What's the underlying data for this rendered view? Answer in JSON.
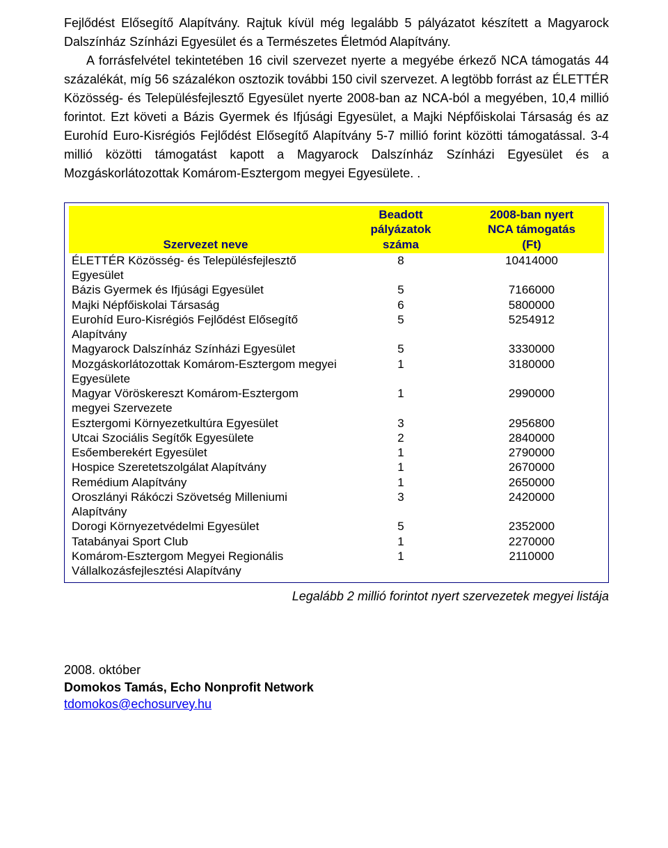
{
  "colors": {
    "header_bg": "#ffff00",
    "header_text": "#000080",
    "border": "#000080",
    "link": "#0000ee",
    "text": "#000000",
    "page_bg": "#ffffff"
  },
  "paragraph": "Fejlődést Elősegítő Alapítvány. Rajtuk kívül még legalább 5 pályázatot készített a Magyarock Dalszínház Színházi Egyesület és a Természetes Életmód Alapítvány.\n    A forrásfelvétel tekintetében 16 civil szervezet nyerte a megyébe érkező NCA támogatás 44 százalékát, míg 56 százalékon osztozik további 150 civil szervezet. A legtöbb forrást az ÉLETTÉR Közösség- és Településfejlesztő Egyesület nyerte 2008-ban az NCA-ból a megyében, 10,4 millió forintot. Ezt követi a Bázis Gyermek és Ifjúsági Egyesület, a Majki Népfőiskolai Társaság és az Eurohíd Euro-Kisrégiós Fejlődést Elősegítő Alapítvány 5-7 millió forint közötti támogatással. 3-4 millió közötti támogatást kapott a Magyarock Dalszínház Színházi Egyesület és a Mozgáskorlátozottak Komárom-Esztergom megyei Egyesülete. .",
  "table": {
    "columns": [
      "Szervezet neve",
      "Beadott pályázatok száma",
      "2008-ban nyert NCA támogatás (Ft)"
    ],
    "col_widths_pct": [
      55,
      20,
      25
    ],
    "rows": [
      [
        "ÉLETTÉR Közösség- és Településfejlesztő Egyesület",
        "8",
        "10414000"
      ],
      [
        "Bázis Gyermek és Ifjúsági Egyesület",
        "5",
        "7166000"
      ],
      [
        "Majki Népfőiskolai Társaság",
        "6",
        "5800000"
      ],
      [
        "Eurohíd Euro-Kisrégiós Fejlődést Elősegítő Alapítvány",
        "5",
        "5254912"
      ],
      [
        "Magyarock Dalszínház Színházi Egyesület",
        "5",
        "3330000"
      ],
      [
        "Mozgáskorlátozottak Komárom-Esztergom megyei Egyesülete",
        "1",
        "3180000"
      ],
      [
        "Magyar Vöröskereszt Komárom-Esztergom megyei Szervezete",
        "1",
        "2990000"
      ],
      [
        "Esztergomi Környezetkultúra Egyesület",
        "3",
        "2956800"
      ],
      [
        "Utcai Szociális Segítők Egyesülete",
        "2",
        "2840000"
      ],
      [
        "Esőemberekért Egyesület",
        "1",
        "2790000"
      ],
      [
        "Hospice Szeretetszolgálat Alapítvány",
        "1",
        "2670000"
      ],
      [
        "Remédium Alapítvány",
        "1",
        "2650000"
      ],
      [
        "Oroszlányi Rákóczi Szövetség Milleniumi Alapítvány",
        "3",
        "2420000"
      ],
      [
        "Dorogi Környezetvédelmi Egyesület",
        "5",
        "2352000"
      ],
      [
        "Tatabányai Sport Club",
        "1",
        "2270000"
      ],
      [
        "Komárom-Esztergom Megyei Regionális Vállalkozásfejlesztési Alapítvány",
        "1",
        "2110000"
      ]
    ]
  },
  "caption": "Legalább 2 millió forintot nyert szervezetek megyei listája",
  "footer": {
    "date": "2008. október",
    "author": "Domokos Tamás, Echo Nonprofit Network",
    "email": "tdomokos@echosurvey.hu"
  }
}
